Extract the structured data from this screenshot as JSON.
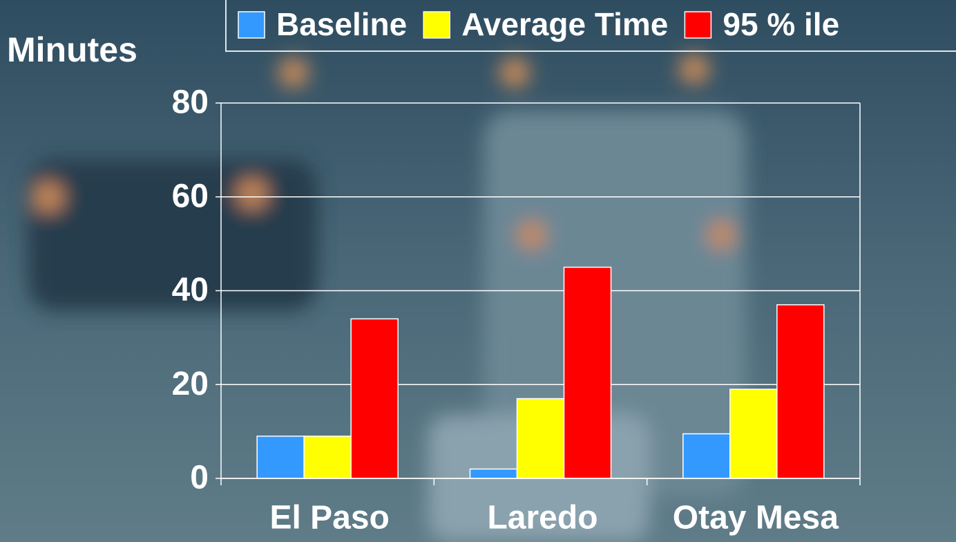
{
  "chart_data": {
    "type": "bar",
    "y_label": "Minutes",
    "categories": [
      "El Paso",
      "Laredo",
      "Otay Mesa"
    ],
    "series": [
      {
        "name": "Baseline",
        "color": "#3399ff",
        "values": [
          9,
          2,
          9.5
        ]
      },
      {
        "name": "Average Time",
        "color": "#ffff00",
        "values": [
          9,
          17,
          19
        ]
      },
      {
        "name": "95 % ile",
        "color": "#ff0000",
        "values": [
          34,
          45,
          37
        ]
      }
    ],
    "ylim": [
      0,
      80
    ],
    "yticks": [
      0,
      20,
      40,
      60,
      80
    ],
    "grid": true,
    "legend": "top"
  }
}
